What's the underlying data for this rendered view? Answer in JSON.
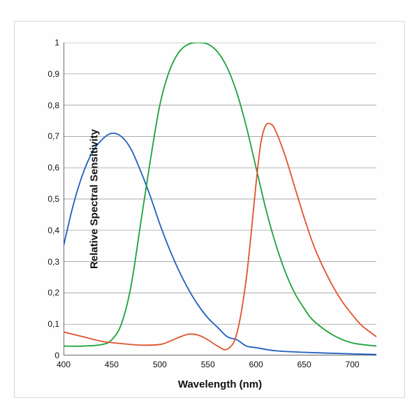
{
  "chart": {
    "type": "line",
    "xlabel": "Wavelength (nm)",
    "ylabel": "Relative Spectral Sensitivity",
    "label_fontsize": 15,
    "tick_fontsize": 12,
    "background_color": "#fefefe",
    "panel_border_color": "#d8d8d8",
    "grid_color": "#8f8f8f",
    "grid_stroke_width": 0.7,
    "axis_color": "#111111",
    "line_width": 1.8,
    "xlim": [
      400,
      725
    ],
    "ylim": [
      0,
      1
    ],
    "yticks": [
      0,
      0.1,
      0.2,
      0.3,
      0.4,
      0.5,
      0.6,
      0.7,
      0.8,
      0.9,
      1
    ],
    "ytick_labels": [
      "0",
      "0,1",
      "0,2",
      "0,3",
      "0,4",
      "0,5",
      "0,6",
      "0,7",
      "0,8",
      "0,9",
      "1"
    ],
    "xticks": [
      400,
      450,
      500,
      550,
      600,
      650,
      700
    ],
    "xtick_labels": [
      "400",
      "450",
      "500",
      "550",
      "600",
      "650",
      "700"
    ],
    "series": [
      {
        "name": "blue",
        "color": "#1f5fbf",
        "x": [
          400,
          410,
          420,
          430,
          440,
          450,
          460,
          470,
          480,
          490,
          500,
          510,
          520,
          530,
          540,
          550,
          560,
          570,
          580,
          590,
          600,
          620,
          650,
          700,
          725
        ],
        "y": [
          0.35,
          0.48,
          0.58,
          0.65,
          0.69,
          0.71,
          0.7,
          0.66,
          0.59,
          0.51,
          0.42,
          0.34,
          0.27,
          0.21,
          0.16,
          0.12,
          0.09,
          0.06,
          0.05,
          0.03,
          0.025,
          0.015,
          0.01,
          0.005,
          0.003
        ]
      },
      {
        "name": "green",
        "color": "#19a23a",
        "x": [
          400,
          420,
          440,
          450,
          460,
          470,
          480,
          490,
          500,
          510,
          520,
          530,
          540,
          550,
          560,
          570,
          580,
          590,
          600,
          610,
          620,
          630,
          640,
          650,
          660,
          680,
          700,
          725
        ],
        "y": [
          0.03,
          0.03,
          0.035,
          0.05,
          0.1,
          0.22,
          0.42,
          0.62,
          0.8,
          0.91,
          0.97,
          0.995,
          1.0,
          0.995,
          0.97,
          0.92,
          0.84,
          0.73,
          0.6,
          0.47,
          0.36,
          0.27,
          0.2,
          0.15,
          0.11,
          0.065,
          0.04,
          0.03
        ]
      },
      {
        "name": "red",
        "color": "#e0522d",
        "x": [
          400,
          420,
          440,
          460,
          480,
          500,
          510,
          520,
          530,
          540,
          550,
          560,
          570,
          580,
          590,
          600,
          605,
          610,
          615,
          620,
          630,
          640,
          650,
          660,
          670,
          680,
          690,
          700,
          710,
          725
        ],
        "y": [
          0.075,
          0.06,
          0.045,
          0.038,
          0.033,
          0.035,
          0.045,
          0.058,
          0.068,
          0.065,
          0.05,
          0.03,
          0.02,
          0.07,
          0.25,
          0.55,
          0.68,
          0.735,
          0.74,
          0.72,
          0.64,
          0.54,
          0.44,
          0.35,
          0.28,
          0.22,
          0.17,
          0.13,
          0.095,
          0.06
        ]
      }
    ]
  }
}
